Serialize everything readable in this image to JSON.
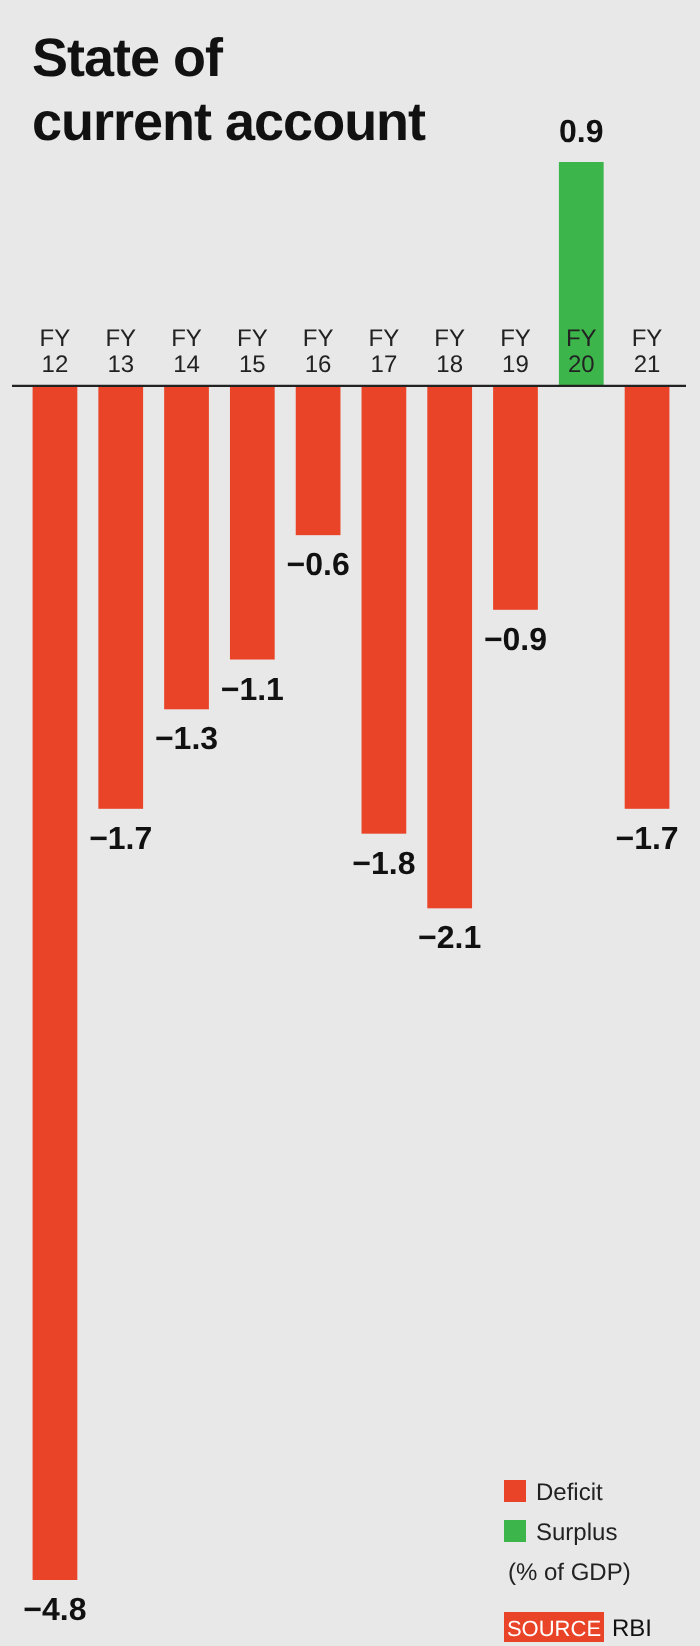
{
  "chart_data": {
    "type": "bar",
    "title": "State of current account",
    "categories": [
      "FY 12",
      "FY 13",
      "FY 14",
      "FY 15",
      "FY 16",
      "FY 17",
      "FY 18",
      "FY 19",
      "FY 20",
      "FY 21"
    ],
    "series": [
      {
        "name": "Deficit",
        "color": "#ea4428",
        "values": [
          -4.8,
          -1.7,
          -1.3,
          -1.1,
          -0.6,
          -1.8,
          -2.1,
          -0.9,
          null,
          -1.7
        ]
      },
      {
        "name": "Surplus",
        "color": "#3cb64a",
        "values": [
          null,
          null,
          null,
          null,
          null,
          null,
          null,
          null,
          0.9,
          null
        ]
      }
    ],
    "stacked": true,
    "data_labels": true,
    "legend": "bottom right",
    "annotations": [
      "(% of GDP)",
      "SOURCE",
      "RBI"
    ]
  }
}
